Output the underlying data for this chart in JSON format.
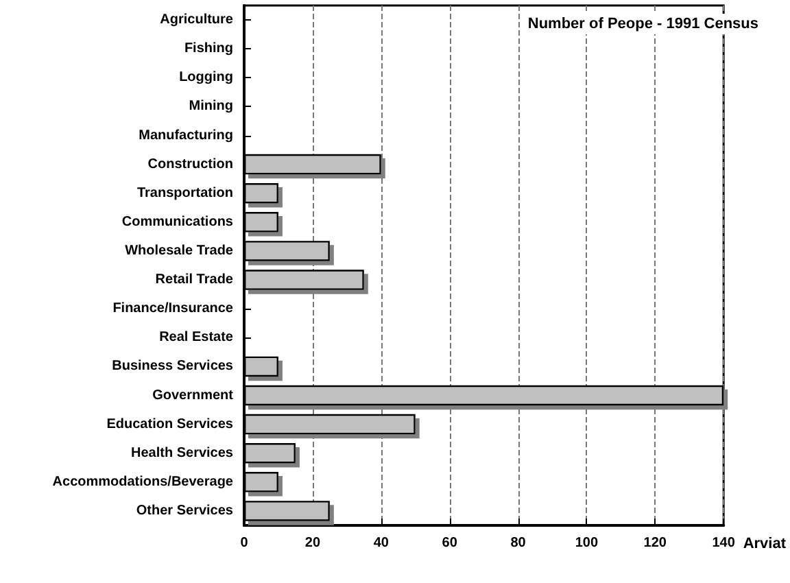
{
  "chart_data": {
    "type": "bar",
    "orientation": "horizontal",
    "title": "Number of Peope - 1991 Census",
    "xlabel": "Arviat",
    "categories": [
      "Agriculture",
      "Fishing",
      "Logging",
      "Mining",
      "Manufacturing",
      "Construction",
      "Transportation",
      "Communications",
      "Wholesale Trade",
      "Retail Trade",
      "Finance/Insurance",
      "Real Estate",
      "Business Services",
      "Government",
      "Education Services",
      "Health Services",
      "Accommodations/Beverage",
      "Other Services"
    ],
    "values": [
      0,
      0,
      0,
      0,
      0,
      40,
      10,
      10,
      25,
      35,
      0,
      0,
      10,
      140,
      50,
      15,
      10,
      25
    ],
    "color": "#c0c0c0",
    "xlim": [
      0,
      140
    ],
    "xticks": [
      0,
      20,
      40,
      60,
      80,
      100,
      120,
      140
    ],
    "grid": "x"
  }
}
